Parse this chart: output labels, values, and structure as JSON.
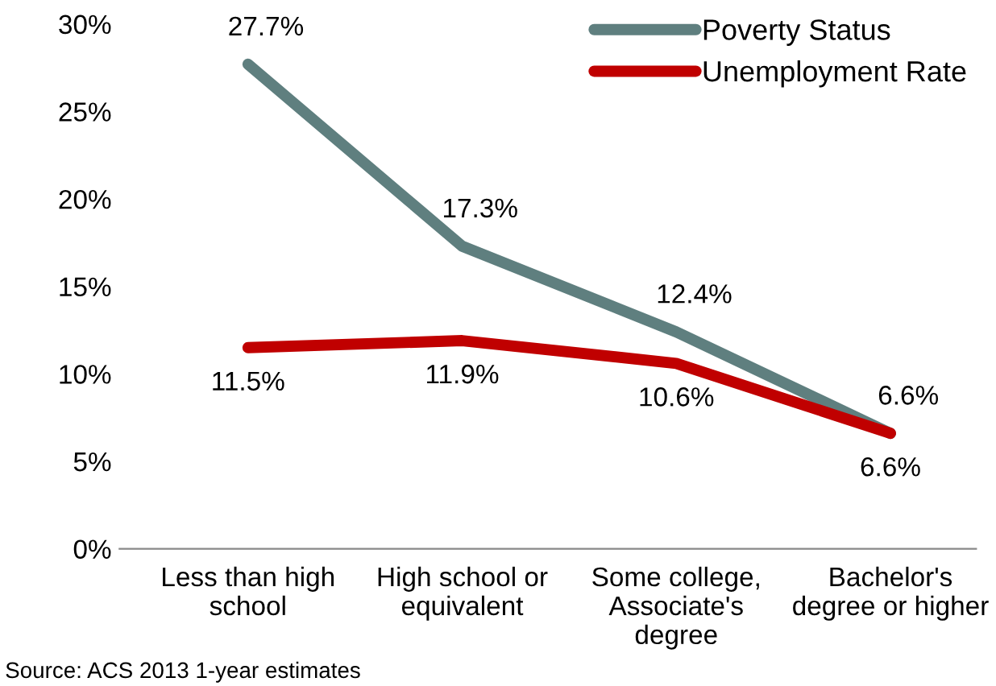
{
  "chart_data": {
    "type": "line",
    "categories": [
      "Less than high\nschool",
      "High school or\nequivalent",
      "Some college,\nAssociate's\ndegree",
      "Bachelor's\ndegree or higher"
    ],
    "series": [
      {
        "name": "Poverty Status",
        "color": "#5f7f7f",
        "values": [
          27.7,
          17.3,
          12.4,
          6.6
        ],
        "value_labels": [
          "27.7%",
          "17.3%",
          "12.4%",
          "6.6%"
        ]
      },
      {
        "name": "Unemployment Rate",
        "color": "#c00000",
        "values": [
          11.5,
          11.9,
          10.6,
          6.6
        ],
        "value_labels": [
          "11.5%",
          "11.9%",
          "10.6%",
          "6.6%"
        ]
      }
    ],
    "ylim": [
      0,
      30
    ],
    "yticks": [
      {
        "value": 0,
        "label": "0%"
      },
      {
        "value": 5,
        "label": "5%"
      },
      {
        "value": 10,
        "label": "10%"
      },
      {
        "value": 15,
        "label": "15%"
      },
      {
        "value": 20,
        "label": "20%"
      },
      {
        "value": 25,
        "label": "25%"
      },
      {
        "value": 30,
        "label": "30%"
      }
    ],
    "grid": false,
    "legend": "top right",
    "marker": "none",
    "line_style": "solid",
    "annotations": [
      "Source: ACS 2013 1-year estimates"
    ]
  }
}
